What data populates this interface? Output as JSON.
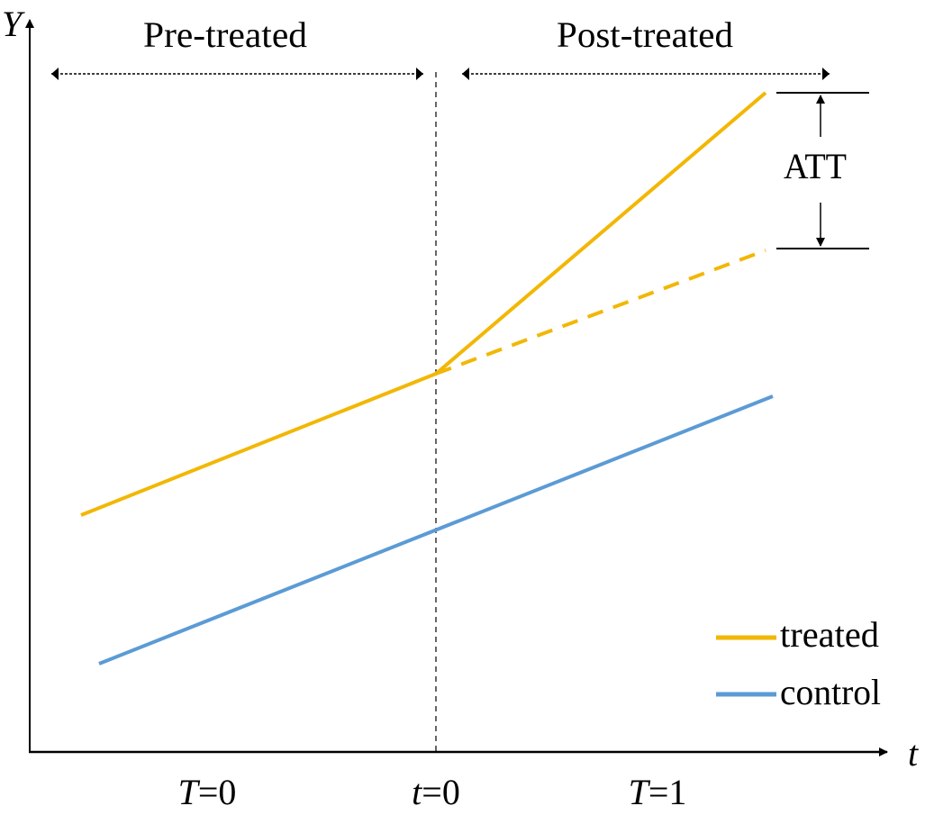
{
  "axes": {
    "y_label": "Y",
    "x_label": "t"
  },
  "periods": {
    "pre": "Pre-treated",
    "post": "Post-treated"
  },
  "effect_label": "ATT",
  "x_ticks": [
    {
      "var": "T",
      "rest": "=0"
    },
    {
      "var": "t",
      "rest": "=0"
    },
    {
      "var": "T",
      "rest": "=1"
    }
  ],
  "legend": [
    {
      "label": "treated",
      "color": "#f2b705"
    },
    {
      "label": "control",
      "color": "#5b9bd5"
    }
  ],
  "colors": {
    "treated": "#f2b705",
    "control": "#5b9bd5",
    "axis": "#000000"
  }
}
